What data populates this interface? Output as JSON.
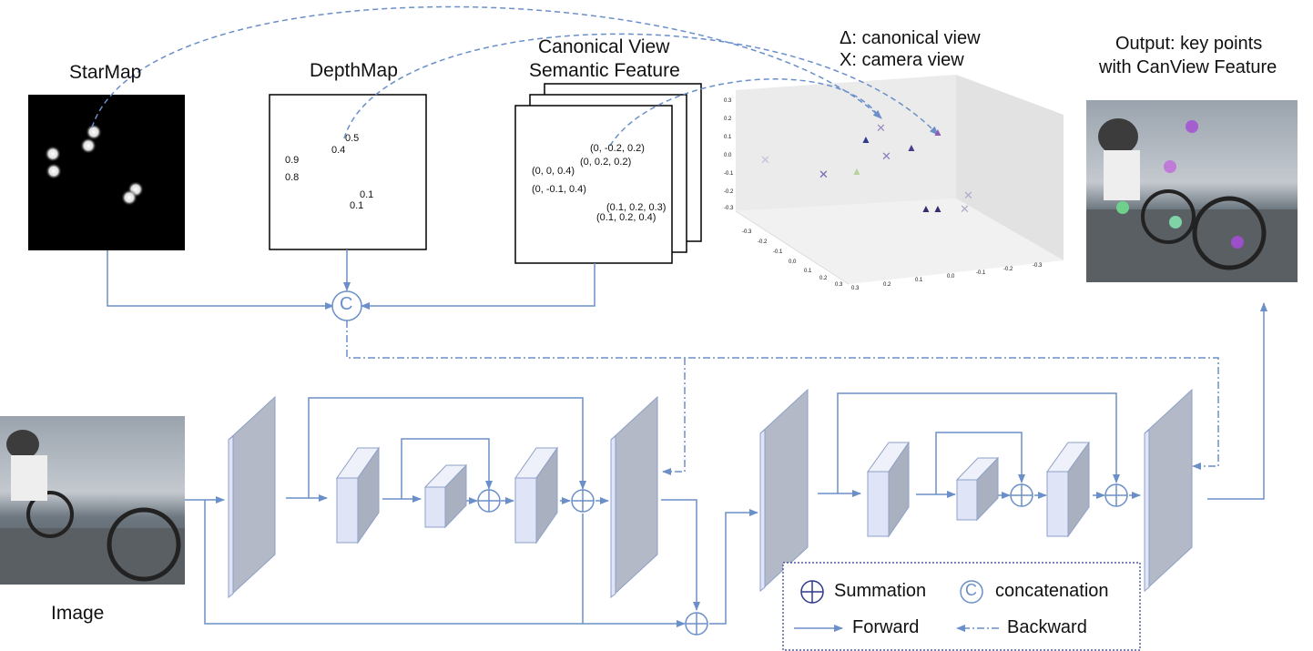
{
  "labels": {
    "starmap": "StarMap",
    "depthmap": "DepthMap",
    "canonical_line1": "Canonical View",
    "canonical_line2": "Semantic Feature",
    "legend3d_line1": "Δ: canonical view",
    "legend3d_line2": "X: camera view",
    "output_line1": "Output: key points",
    "output_line2": "with CanView Feature",
    "image": "Image"
  },
  "depthmap_values": [
    "0.5",
    "0.4",
    "0.9",
    "0.8",
    "0.1",
    "0.1"
  ],
  "canonical_values": [
    "(0, -0.2, 0.2)",
    "(0, 0.2, 0.2)",
    "(0, 0, 0.4)",
    "(0, -0.1, 0.4)",
    "(0.1, 0.2, 0.3)",
    "(0.1, 0.2, 0.4)"
  ],
  "legend": {
    "summation": "Summation",
    "concatenation": "concatenation",
    "forward": "Forward",
    "backward": "Backward",
    "concat_symbol": "C"
  },
  "plot3d": {
    "tick_labels_y": [
      "0.3",
      "0.2",
      "0.1",
      "0.0",
      "-0.1",
      "-0.2",
      "-0.3"
    ],
    "tick_labels_x": [
      "-0.3",
      "-0.2",
      "-0.1",
      "0.0",
      "0.1",
      "0.2",
      "0.3"
    ],
    "tick_labels_z": [
      "0.3",
      "0.2",
      "0.1",
      "0.0",
      "-0.1",
      "-0.2",
      "-0.3"
    ]
  },
  "colors": {
    "line": "#6b8fc9",
    "slab_front": "#b3b9c6",
    "block_front": "#dfe5f7",
    "block_side": "#a9b0bf",
    "purple": "#8a5fb0",
    "navy": "#2e3a8c"
  }
}
